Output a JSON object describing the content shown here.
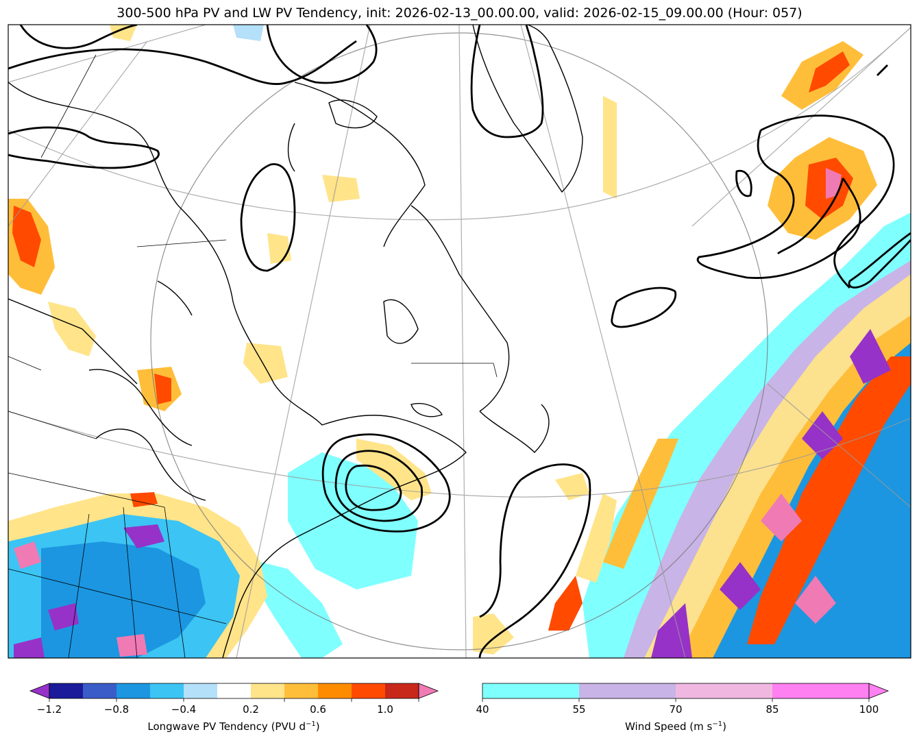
{
  "title": "300-500 hPa PV and LW PV Tendency, init: 2026-02-13_00.00.00, valid: 2026-02-15_09.00.00 (Hour: 057)",
  "colorbar_left": {
    "label_main": "Longwave PV Tendency (PVU d",
    "label_sup": "−1",
    "label_end": ")",
    "ticks": [
      "−1.2",
      "−0.8",
      "−0.4",
      "0.2",
      "0.6",
      "1.0"
    ],
    "colors": [
      "#1a1a9a",
      "#3a5cc8",
      "#1c96e0",
      "#3cc4f4",
      "#b4e0fa",
      "#ffffff",
      "#ffe48a",
      "#ffbe3a",
      "#ff8c00",
      "#ff4a00",
      "#c8281a"
    ],
    "under_color": "#9632c8",
    "over_color": "#f07ab4"
  },
  "colorbar_right": {
    "label_main": "Wind Speed (m s",
    "label_sup": "−1",
    "label_end": ")",
    "ticks": [
      "40",
      "55",
      "70",
      "85",
      "100"
    ],
    "colors": [
      "#80ffff",
      "#c8b4e6",
      "#f0b8e0",
      "#ff80f0"
    ],
    "over_color": "#ff80f0"
  }
}
